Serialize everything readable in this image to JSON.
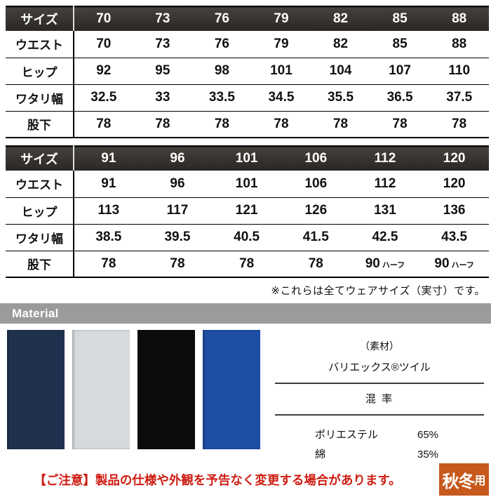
{
  "tables": [
    {
      "header": {
        "label": "サイズ",
        "values": [
          "70",
          "73",
          "76",
          "79",
          "82",
          "85",
          "88"
        ]
      },
      "rows": [
        {
          "label": "ウエスト",
          "values": [
            "70",
            "73",
            "76",
            "79",
            "82",
            "85",
            "88"
          ]
        },
        {
          "label": "ヒップ",
          "values": [
            "92",
            "95",
            "98",
            "101",
            "104",
            "107",
            "110"
          ]
        },
        {
          "label": "ワタリ幅",
          "values": [
            "32.5",
            "33",
            "33.5",
            "34.5",
            "35.5",
            "36.5",
            "37.5"
          ]
        },
        {
          "label": "股下",
          "values": [
            "78",
            "78",
            "78",
            "78",
            "78",
            "78",
            "78"
          ]
        }
      ]
    },
    {
      "header": {
        "label": "サイズ",
        "values": [
          "91",
          "96",
          "101",
          "106",
          "112",
          "120"
        ]
      },
      "rows": [
        {
          "label": "ウエスト",
          "values": [
            "91",
            "96",
            "101",
            "106",
            "112",
            "120"
          ]
        },
        {
          "label": "ヒップ",
          "values": [
            "113",
            "117",
            "121",
            "126",
            "131",
            "136"
          ]
        },
        {
          "label": "ワタリ幅",
          "values": [
            "38.5",
            "39.5",
            "40.5",
            "41.5",
            "42.5",
            "43.5"
          ]
        },
        {
          "label": "股下",
          "values": [
            "78",
            "78",
            "78",
            "78",
            {
              "main": "90",
              "suffix": "ハーフ"
            },
            {
              "main": "90",
              "suffix": "ハーフ"
            }
          ]
        }
      ]
    }
  ],
  "size_note": "※これらは全てウェアサイズ（実寸）です。",
  "material": {
    "section_title": "Material",
    "label": "（素材）",
    "fabric_name": "バリエックス®ツイル",
    "mix_label": "混 率",
    "composition": [
      {
        "name": "ポリエステル",
        "pct": "65%"
      },
      {
        "name": "綿",
        "pct": "35%"
      }
    ],
    "swatches": [
      {
        "name": "navy",
        "color": "#20304f"
      },
      {
        "name": "silver",
        "color": "#d5dade"
      },
      {
        "name": "black",
        "color": "#0c0c0e"
      },
      {
        "name": "blue",
        "color": "#1f4fa5"
      }
    ],
    "bar_color": "#9b9b9b"
  },
  "notice": {
    "text": "【ご注意】製品の仕様や外観を予告なく変更する場合があります。",
    "color": "#ce1d12"
  },
  "badge": {
    "text_main": "秋冬",
    "text_sub": "用",
    "bg": "#c7591c"
  }
}
